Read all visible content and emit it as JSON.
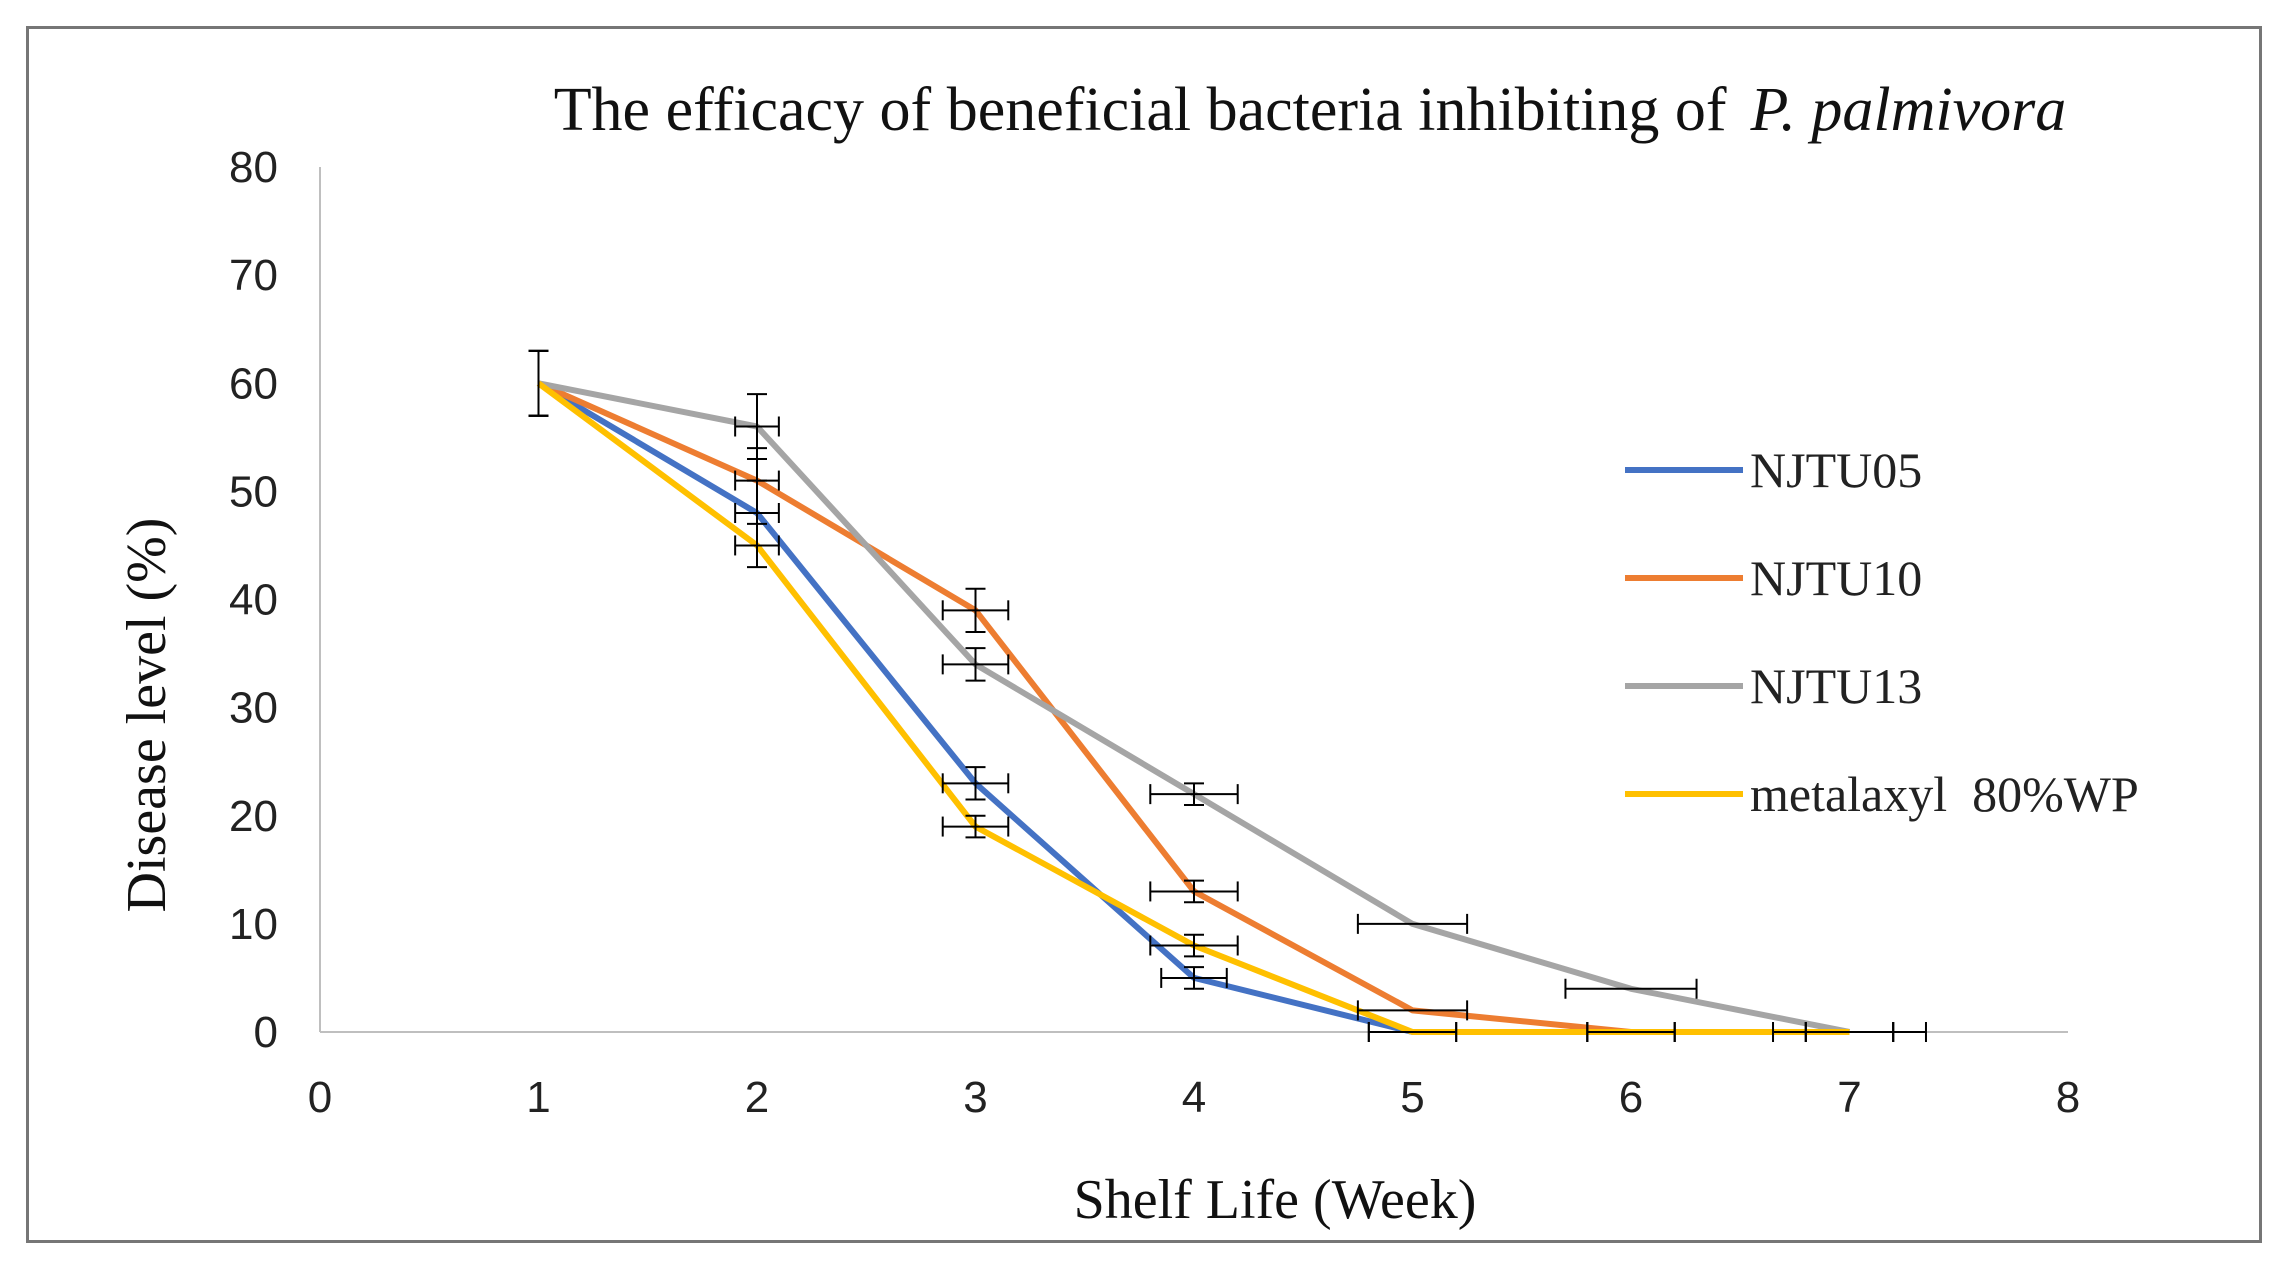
{
  "chart_data": {
    "type": "line",
    "title": "The efficacy of beneficial bacteria inhibiting of",
    "title_italic": "P. palmivora",
    "xlabel": "Shelf Life (Week)",
    "ylabel": "Disease level (%)",
    "xlim": [
      0,
      8
    ],
    "ylim": [
      0,
      80
    ],
    "xticks": [
      0,
      1,
      2,
      3,
      4,
      5,
      6,
      7,
      8
    ],
    "yticks": [
      0,
      10,
      20,
      30,
      40,
      50,
      60,
      70,
      80
    ],
    "grid": false,
    "legend_position": "right",
    "series": [
      {
        "name": "NJTU05",
        "color": "#4472C4",
        "x": [
          1,
          2,
          3,
          4,
          5,
          6,
          7
        ],
        "values": [
          60,
          48,
          23,
          5,
          0,
          0,
          0
        ],
        "err_x": [
          0,
          0.1,
          0.15,
          0.15,
          0.2,
          0.2,
          0.2
        ],
        "err_y": [
          3,
          3,
          1.5,
          1,
          0,
          0,
          0
        ]
      },
      {
        "name": "NJTU10",
        "color": "#ED7D31",
        "x": [
          1,
          2,
          3,
          4,
          5,
          6,
          7
        ],
        "values": [
          60,
          51,
          39,
          13,
          2,
          0,
          0
        ],
        "err_x": [
          0,
          0.1,
          0.15,
          0.2,
          0.25,
          0.2,
          0.2
        ],
        "err_y": [
          3,
          3,
          2,
          1,
          0,
          0,
          0
        ]
      },
      {
        "name": "NJTU13",
        "color": "#A5A5A5",
        "x": [
          1,
          2,
          3,
          4,
          5,
          6,
          7
        ],
        "values": [
          60,
          56,
          34,
          22,
          10,
          4,
          0
        ],
        "err_x": [
          0,
          0.1,
          0.15,
          0.2,
          0.25,
          0.3,
          0.35
        ],
        "err_y": [
          3,
          3,
          1.5,
          1,
          0,
          0,
          0
        ]
      },
      {
        "name": "metalaxyl  80%WP",
        "color": "#FFC000",
        "x": [
          1,
          2,
          3,
          4,
          5,
          6,
          7
        ],
        "values": [
          60,
          45,
          19,
          8,
          0,
          0,
          0
        ],
        "err_x": [
          0,
          0.1,
          0.15,
          0.2,
          0.2,
          0.2,
          0.2
        ],
        "err_y": [
          3,
          2,
          1,
          1,
          0,
          0,
          0
        ]
      }
    ]
  }
}
